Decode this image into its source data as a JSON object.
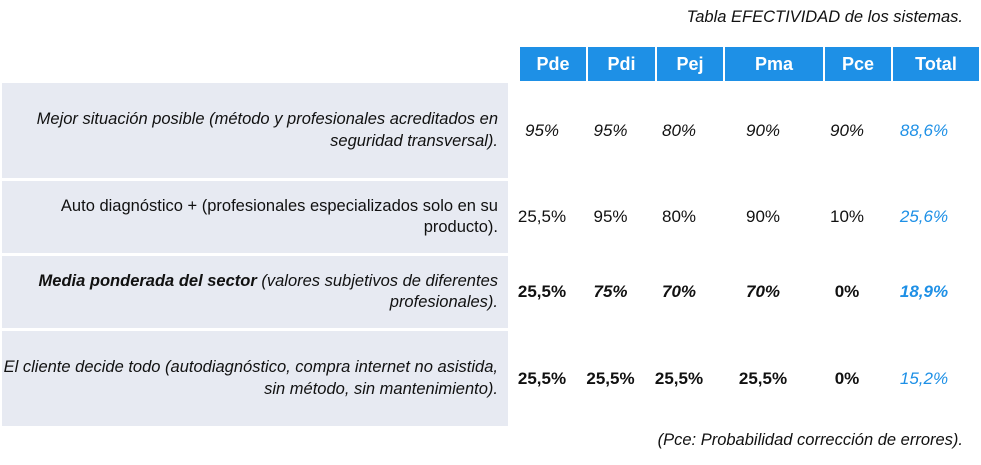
{
  "caption": "Tabla EFECTIVIDAD de los sistemas.",
  "footnote": "(Pce: Probabilidad corrección de errores).",
  "colors": {
    "header_bg": "#1e90e6",
    "label_bg": "#e7eaf2",
    "total_text": "#1e90e6"
  },
  "headers": [
    "Pde",
    "Pdi",
    "Pej",
    "Pma",
    "Pce",
    "Total"
  ],
  "rows": [
    {
      "label_bold": "",
      "label_rest": "Mejor situación posible (método y profesionales acreditados en seguridad transversal).",
      "cells": [
        "95%",
        "95%",
        "80%",
        "90%",
        "90%",
        "88,6%"
      ]
    },
    {
      "label_bold": "",
      "label_rest": "Auto diagnóstico + (profesionales especializados solo en su producto).",
      "cells": [
        "25,5%",
        "95%",
        "80%",
        "90%",
        "10%",
        "25,6%"
      ]
    },
    {
      "label_bold": "Media ponderada del sector",
      "label_rest": " (valores subjetivos de diferentes profesionales).",
      "cells": [
        "25,5%",
        "75%",
        "70%",
        "70%",
        "0%",
        "18,9%"
      ]
    },
    {
      "label_bold": "",
      "label_rest": "El cliente decide todo (autodiagnóstico, compra internet no asistida, sin método, sin mantenimiento).",
      "cells": [
        "25,5%",
        "25,5%",
        "25,5%",
        "25,5%",
        "0%",
        "15,2%"
      ]
    }
  ]
}
